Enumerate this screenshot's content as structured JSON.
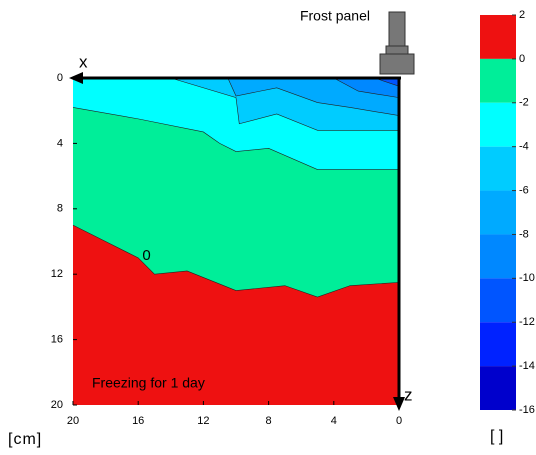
{
  "chart_data": {
    "type": "contour",
    "title": "Frost panel",
    "xlabel": "x",
    "ylabel": "z",
    "unit": "[cm]",
    "annotation": "Freezing for 1 day",
    "xlim": [
      20,
      0
    ],
    "xticks": [
      20,
      16,
      12,
      8,
      4,
      0
    ],
    "ylim": [
      0,
      20
    ],
    "y_direction": "down",
    "yticks": [
      0,
      4,
      8,
      12,
      16,
      20
    ],
    "contours": [
      {
        "level": 0,
        "x": [
          20,
          18,
          16,
          15,
          13,
          10,
          7,
          5,
          3,
          0
        ],
        "y": [
          9,
          10,
          11,
          12,
          11.8,
          13,
          12.7,
          13.4,
          12.7,
          12.5
        ],
        "labelled": true
      },
      {
        "level": -2,
        "x": [
          20,
          16,
          12,
          11,
          10,
          8,
          5,
          0
        ],
        "y": [
          1.8,
          2.5,
          3.3,
          4,
          4.5,
          4.3,
          5.6,
          5.6
        ],
        "labelled": false
      },
      {
        "level": -4,
        "x": [
          14,
          10,
          9.8,
          7.5,
          5,
          0
        ],
        "y": [
          0,
          1.2,
          2.8,
          2.2,
          3.2,
          3.2
        ],
        "labelled": false
      },
      {
        "level": -6,
        "x": [
          10.5,
          10,
          7.5,
          5,
          3,
          0
        ],
        "y": [
          0,
          1.1,
          0.6,
          1.5,
          1.8,
          2.3
        ],
        "labelled": false
      },
      {
        "level": -8,
        "x": [
          4,
          2.5,
          0
        ],
        "y": [
          0,
          0.8,
          1.2
        ],
        "labelled": false
      },
      {
        "level": -10,
        "x": [
          1.5,
          0
        ],
        "y": [
          0,
          0.5
        ],
        "labelled": false
      }
    ],
    "colorbar": {
      "label": "[ ]",
      "lim": [
        -16,
        2
      ],
      "ticks": [
        2,
        0,
        -2,
        -4,
        -6,
        -8,
        -10,
        -12,
        -14,
        -16
      ],
      "colors": [
        "#ee1111",
        "#00ee99",
        "#00ffff",
        "#00ccff",
        "#00aaff",
        "#0088ff",
        "#0055ff",
        "#0022ff",
        "#0000cc"
      ]
    }
  }
}
